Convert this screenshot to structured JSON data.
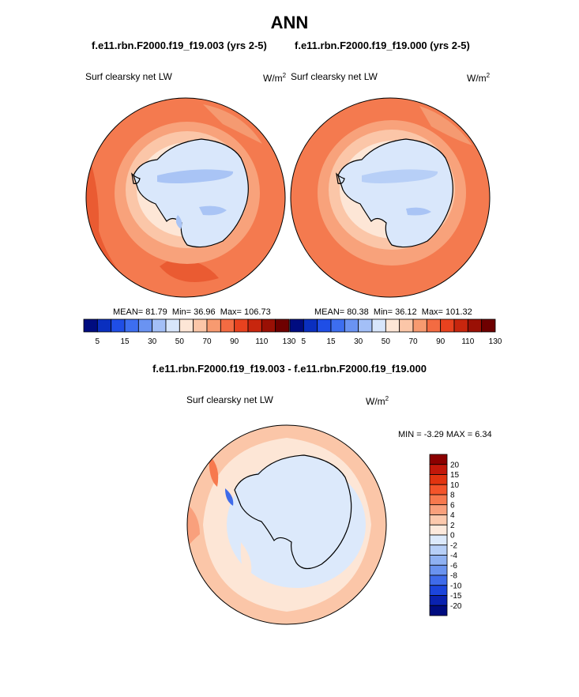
{
  "title": "ANN",
  "panels": [
    {
      "case": "f.e11.rbn.F2000.f19_f19.003 (yrs 2-5)",
      "label": "Surf clearsky net LW",
      "units_base": "W/m",
      "units_exp": "2",
      "mean": "MEAN=  81.79",
      "min": "Min=  36.96",
      "max": "Max= 106.73"
    },
    {
      "case": "f.e11.rbn.F2000.f19_f19.000 (yrs 2-5)",
      "label": "Surf clearsky net LW",
      "units_base": "W/m",
      "units_exp": "2",
      "mean": "MEAN=  80.38",
      "min": "Min=  36.12",
      "max": "Max= 101.32"
    }
  ],
  "abs_colorbar": {
    "colors": [
      "#000c80",
      "#0a2fbf",
      "#1f4ee6",
      "#3d6ef0",
      "#6a93f2",
      "#a3bff7",
      "#d8e6fb",
      "#fde6d6",
      "#fbc6a8",
      "#f79a70",
      "#f36b42",
      "#e8421f",
      "#c8260e",
      "#9a1005",
      "#6e0000"
    ],
    "ticks": [
      "5",
      "15",
      "30",
      "50",
      "70",
      "90",
      "110",
      "130"
    ]
  },
  "diff": {
    "title": "f.e11.rbn.F2000.f19_f19.003 - f.e11.rbn.F2000.f19_f19.000",
    "label": "Surf clearsky net LW",
    "units_base": "W/m",
    "units_exp": "2",
    "minmax": "MIN =  -3.29 MAX =   6.34"
  },
  "diff_colorbar": {
    "colors": [
      "#8b0000",
      "#c2180a",
      "#e23410",
      "#f4542a",
      "#f7794e",
      "#f9a07c",
      "#fcc9ad",
      "#fde9dc",
      "#dce9fb",
      "#b7cff7",
      "#8fb1f2",
      "#6a93ef",
      "#3f6bea",
      "#1c45dc",
      "#0a22b0",
      "#000c80"
    ],
    "ticks": [
      "20",
      "15",
      "10",
      "8",
      "6",
      "4",
      "2",
      "0",
      "-2",
      "-4",
      "-6",
      "-8",
      "-10",
      "-15",
      "-20"
    ]
  }
}
